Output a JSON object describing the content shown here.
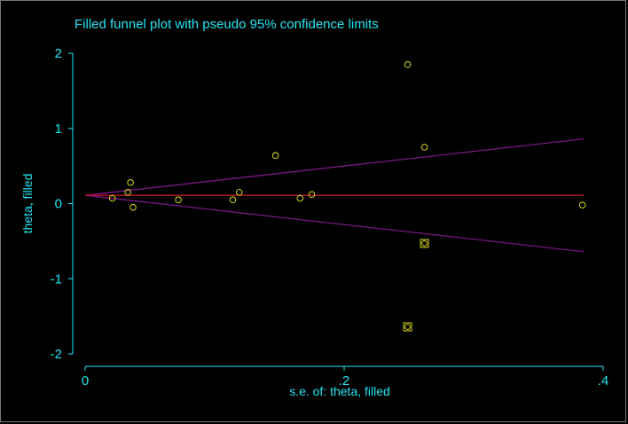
{
  "chart_data": {
    "type": "scatter",
    "title": "Filled funnel plot with pseudo 95% confidence limits",
    "xlabel": "s.e. of: theta, filled",
    "ylabel": "theta, filled",
    "xlim": [
      0,
      0.4
    ],
    "ylim": [
      -2,
      2
    ],
    "x_ticks": [
      {
        "value": 0,
        "label": "0"
      },
      {
        "value": 0.2,
        "label": ".2"
      },
      {
        "value": 0.4,
        "label": ".4"
      }
    ],
    "y_ticks": [
      {
        "value": 2,
        "label": "2"
      },
      {
        "value": 1,
        "label": "1"
      },
      {
        "value": 0,
        "label": "0"
      },
      {
        "value": -1,
        "label": "-1"
      },
      {
        "value": -2,
        "label": "-2"
      }
    ],
    "pooled_estimate": 0.11,
    "ci_lines": {
      "from_x": 0,
      "to_x": 0.385,
      "upper_end_y": 0.86,
      "lower_end_y": -0.64
    },
    "observed_points": [
      {
        "x": 0.021,
        "y": 0.07
      },
      {
        "x": 0.033,
        "y": 0.15
      },
      {
        "x": 0.035,
        "y": 0.28
      },
      {
        "x": 0.037,
        "y": -0.05
      },
      {
        "x": 0.072,
        "y": 0.05
      },
      {
        "x": 0.114,
        "y": 0.05
      },
      {
        "x": 0.119,
        "y": 0.15
      },
      {
        "x": 0.147,
        "y": 0.64
      },
      {
        "x": 0.166,
        "y": 0.07
      },
      {
        "x": 0.175,
        "y": 0.12
      },
      {
        "x": 0.249,
        "y": 1.85
      },
      {
        "x": 0.262,
        "y": 0.75
      },
      {
        "x": 0.384,
        "y": -0.02
      }
    ],
    "filled_points": [
      {
        "x": 0.262,
        "y": -0.53
      },
      {
        "x": 0.249,
        "y": -1.64
      }
    ],
    "colors": {
      "background": "#000000",
      "text": "#21e6f2",
      "axes": "#21e6f2",
      "points": "#c8c820",
      "pooled_line": "#b4141e",
      "ci_lines": "#7a1585"
    }
  }
}
